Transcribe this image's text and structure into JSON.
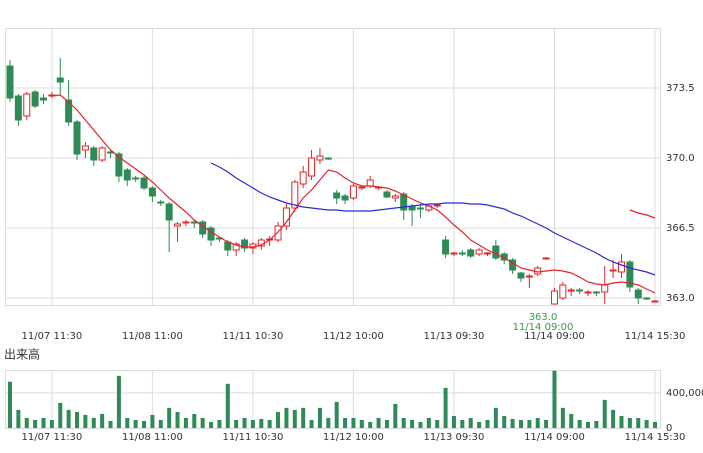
{
  "chart_data": [
    {
      "type": "candlestick",
      "categories": [
        null,
        null,
        null,
        null,
        null,
        "11/07 11:30",
        null,
        null,
        null,
        null,
        null,
        null,
        null,
        null,
        null,
        null,
        null,
        "11/08 11:00",
        null,
        null,
        null,
        null,
        null,
        null,
        null,
        null,
        null,
        null,
        null,
        "11/11 10:30",
        null,
        null,
        null,
        null,
        null,
        null,
        null,
        null,
        null,
        null,
        null,
        "11/12 10:00",
        null,
        null,
        null,
        null,
        null,
        null,
        null,
        null,
        null,
        null,
        null,
        "11/13 09:30",
        null,
        null,
        null,
        null,
        null,
        null,
        null,
        null,
        null,
        null,
        null,
        "11/14 09:00",
        null,
        null,
        null,
        null,
        null,
        null,
        null,
        null,
        null,
        null,
        null,
        "11/14 15:30"
      ],
      "open": [
        374.6,
        373.1,
        372.1,
        373.3,
        373.0,
        373.1,
        374.0,
        372.9,
        371.8,
        370.4,
        370.5,
        369.9,
        370.3,
        370.2,
        369.4,
        369.0,
        369.0,
        368.5,
        367.8,
        367.7,
        366.6,
        366.75,
        366.8,
        366.8,
        366.5,
        366.0,
        365.8,
        365.4,
        365.9,
        365.5,
        365.6,
        365.9,
        365.9,
        366.6,
        367.5,
        368.7,
        369.1,
        369.9,
        370.0,
        368.25,
        368.1,
        368.0,
        368.5,
        368.6,
        368.5,
        368.3,
        368.0,
        368.2,
        367.6,
        367.5,
        367.4,
        367.6,
        365.9,
        365.2,
        365.25,
        365.4,
        365.2,
        365.2,
        365.6,
        365.2,
        364.9,
        364.25,
        364.1,
        364.2,
        365.0,
        362.7,
        363.0,
        363.4,
        363.4,
        363.3,
        363.3,
        363.3,
        364.4,
        364.3,
        364.8,
        363.4,
        363.0,
        362.85
      ],
      "high": [
        374.9,
        373.2,
        373.3,
        373.4,
        373.2,
        373.3,
        375.0,
        373.9,
        371.9,
        370.8,
        370.6,
        370.6,
        370.4,
        370.3,
        369.5,
        369.1,
        369.1,
        368.6,
        367.9,
        367.8,
        366.8,
        366.9,
        366.9,
        366.9,
        366.6,
        366.0,
        365.9,
        365.8,
        366.0,
        365.8,
        366.0,
        366.1,
        366.8,
        367.7,
        368.9,
        369.6,
        370.4,
        370.5,
        370.0,
        368.4,
        368.2,
        368.7,
        368.6,
        369.1,
        368.6,
        368.4,
        368.2,
        368.3,
        367.7,
        367.7,
        367.7,
        367.7,
        366.1,
        365.3,
        365.4,
        365.5,
        365.5,
        365.3,
        365.9,
        365.3,
        365.0,
        364.3,
        364.2,
        364.6,
        365.05,
        363.5,
        363.8,
        363.5,
        363.5,
        363.4,
        363.35,
        364.6,
        364.9,
        365.2,
        364.9,
        363.5,
        363.05,
        362.9
      ],
      "low": [
        372.8,
        371.6,
        371.9,
        372.5,
        372.7,
        373.0,
        373.1,
        371.6,
        369.9,
        370.0,
        369.6,
        369.8,
        370.0,
        368.8,
        368.6,
        368.8,
        368.4,
        367.8,
        367.6,
        365.3,
        365.8,
        366.6,
        366.5,
        366.0,
        365.6,
        365.8,
        365.1,
        365.1,
        365.3,
        365.2,
        365.4,
        365.6,
        365.8,
        366.4,
        367.3,
        368.5,
        368.9,
        369.7,
        369.9,
        367.7,
        367.7,
        367.9,
        368.4,
        368.5,
        368.4,
        368.0,
        367.8,
        366.9,
        366.6,
        367.0,
        367.3,
        367.5,
        365.0,
        365.1,
        365.1,
        365.0,
        365.1,
        365.1,
        364.9,
        364.7,
        364.2,
        363.8,
        363.5,
        364.1,
        364.95,
        362.7,
        362.9,
        363.1,
        363.2,
        363.1,
        363.1,
        362.7,
        364.0,
        364.0,
        363.3,
        362.7,
        362.9,
        362.8
      ],
      "close": [
        373.0,
        371.9,
        373.2,
        372.6,
        372.9,
        373.15,
        373.8,
        371.8,
        370.2,
        370.6,
        369.9,
        370.5,
        370.25,
        369.1,
        368.9,
        368.95,
        368.5,
        368.1,
        367.75,
        366.9,
        366.7,
        366.8,
        366.75,
        366.2,
        365.9,
        365.95,
        365.4,
        365.7,
        365.5,
        365.7,
        365.9,
        365.95,
        366.6,
        367.5,
        368.8,
        369.3,
        370.0,
        370.1,
        369.95,
        368.0,
        367.9,
        368.6,
        368.55,
        368.9,
        368.55,
        368.05,
        368.1,
        367.4,
        367.4,
        367.45,
        367.6,
        367.65,
        365.2,
        365.25,
        365.2,
        365.1,
        365.4,
        365.25,
        365.0,
        364.9,
        364.4,
        364.0,
        364.1,
        364.5,
        365.0,
        363.35,
        363.65,
        363.4,
        363.35,
        363.3,
        363.25,
        363.65,
        364.4,
        364.8,
        363.55,
        363.0,
        362.95,
        362.85
      ],
      "up_color": "#e0262b",
      "down_color": "#2e8b57",
      "series": [
        {
          "color": "#e8222a",
          "values": [
            null,
            null,
            null,
            null,
            null,
            373.1,
            373.15,
            372.8,
            372.4,
            371.9,
            371.4,
            370.9,
            370.4,
            370.05,
            369.75,
            369.45,
            369.15,
            368.8,
            368.4,
            368.0,
            367.65,
            367.3,
            366.9,
            366.6,
            366.3,
            366.05,
            365.8,
            365.65,
            365.55,
            365.55,
            365.65,
            365.9,
            366.3,
            366.8,
            367.4,
            368.0,
            368.4,
            368.9,
            369.4,
            369.3,
            369.0,
            368.75,
            368.6,
            368.6,
            368.55,
            368.5,
            368.35,
            368.15,
            367.95,
            367.75,
            367.6,
            367.4,
            367.05,
            366.65,
            366.3,
            365.9,
            365.65,
            365.4,
            365.2,
            365.0,
            364.75,
            364.5,
            364.4,
            364.3,
            364.35,
            364.4,
            364.35,
            364.25,
            364.05,
            363.8,
            363.7,
            363.65,
            363.75,
            363.8,
            363.75,
            363.65,
            363.45,
            363.25
          ]
        },
        {
          "color": "#2b2bd8",
          "values": [
            null,
            null,
            null,
            null,
            null,
            null,
            null,
            null,
            null,
            null,
            null,
            null,
            null,
            null,
            null,
            null,
            null,
            null,
            null,
            null,
            null,
            null,
            null,
            null,
            369.75,
            369.55,
            369.3,
            369.0,
            368.75,
            368.5,
            368.25,
            368.05,
            367.9,
            367.75,
            367.65,
            367.55,
            367.5,
            367.45,
            367.4,
            367.4,
            367.35,
            367.35,
            367.35,
            367.35,
            367.4,
            367.45,
            367.5,
            367.55,
            367.6,
            367.65,
            367.7,
            367.7,
            367.75,
            367.75,
            367.75,
            367.7,
            367.7,
            367.65,
            367.55,
            367.45,
            367.25,
            367.1,
            366.9,
            366.7,
            366.5,
            366.25,
            366.05,
            365.85,
            365.65,
            365.45,
            365.25,
            365.0,
            364.8,
            364.65,
            364.5,
            364.4,
            364.3,
            364.15
          ]
        },
        {
          "color": "#e8222a",
          "values": [
            null,
            null,
            null,
            null,
            null,
            null,
            null,
            null,
            null,
            null,
            null,
            null,
            null,
            null,
            null,
            null,
            null,
            null,
            null,
            null,
            null,
            null,
            null,
            null,
            null,
            null,
            null,
            null,
            null,
            null,
            null,
            null,
            null,
            null,
            null,
            null,
            null,
            null,
            null,
            null,
            null,
            null,
            null,
            null,
            null,
            null,
            null,
            null,
            null,
            null,
            null,
            null,
            null,
            null,
            null,
            null,
            null,
            null,
            null,
            null,
            null,
            null,
            null,
            null,
            null,
            null,
            null,
            null,
            null,
            null,
            null,
            null,
            null,
            null,
            367.4,
            367.25,
            367.15,
            367.0
          ]
        }
      ],
      "annotations": [
        "363.0",
        "11/14 09:00"
      ],
      "ylim": [
        362.65,
        376.5
      ],
      "yticks": [
        {
          "value": 363,
          "label": "363.0"
        },
        366.5,
        {
          "value": 370,
          "label": "370.0"
        },
        373.5
      ],
      "grid": true
    },
    {
      "type": "bar",
      "title": "出来高",
      "categories": [
        null,
        null,
        null,
        null,
        null,
        "11/07 11:30",
        null,
        null,
        null,
        null,
        null,
        null,
        null,
        null,
        null,
        null,
        null,
        "11/08 11:00",
        null,
        null,
        null,
        null,
        null,
        null,
        null,
        null,
        null,
        null,
        null,
        "11/11 10:30",
        null,
        null,
        null,
        null,
        null,
        null,
        null,
        null,
        null,
        null,
        null,
        "11/12 10:00",
        null,
        null,
        null,
        null,
        null,
        null,
        null,
        null,
        null,
        null,
        null,
        "11/13 09:30",
        null,
        null,
        null,
        null,
        null,
        null,
        null,
        null,
        null,
        null,
        null,
        "11/14 09:00",
        null,
        null,
        null,
        null,
        null,
        null,
        null,
        null,
        null,
        null,
        null,
        "11/14 15:30"
      ],
      "values": [
        526000,
        206000,
        114000,
        91000,
        114000,
        91000,
        286000,
        206000,
        183000,
        149000,
        114000,
        160000,
        80000,
        594000,
        114000,
        91000,
        80000,
        149000,
        91000,
        229000,
        183000,
        114000,
        160000,
        114000,
        69000,
        91000,
        503000,
        91000,
        114000,
        91000,
        103000,
        91000,
        183000,
        229000,
        206000,
        229000,
        91000,
        229000,
        114000,
        297000,
        114000,
        114000,
        91000,
        69000,
        114000,
        91000,
        274000,
        114000,
        91000,
        69000,
        114000,
        91000,
        457000,
        137000,
        91000,
        114000,
        69000,
        91000,
        229000,
        137000,
        103000,
        91000,
        91000,
        114000,
        91000,
        651000,
        229000,
        160000,
        91000,
        69000,
        80000,
        320000,
        206000,
        137000,
        114000,
        114000,
        91000,
        69000
      ],
      "color": "#2e8b57",
      "ylim": [
        0,
        660000
      ],
      "yticks": [
        0,
        {
          "value": 400000,
          "label": "400,000"
        }
      ],
      "grid": true
    }
  ]
}
